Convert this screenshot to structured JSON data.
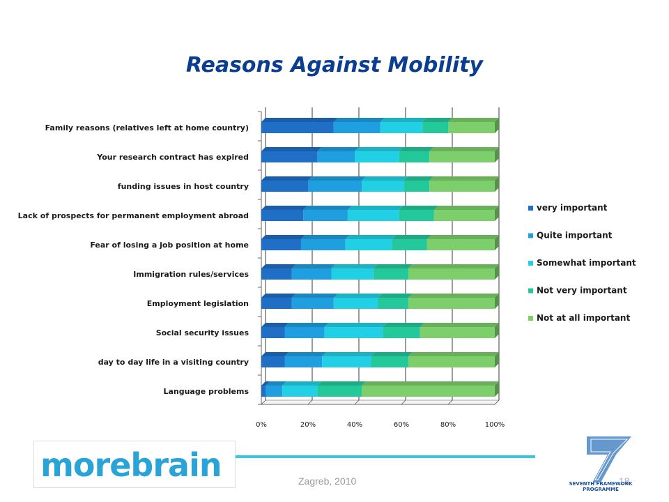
{
  "slide": {
    "title": "Reasons Against Mobility",
    "footer": "Zagreb, 2010",
    "page_number": "18",
    "logo_text": "morebrain",
    "fp7_logo_text": [
      "SEVENTH FRAMEWORK",
      "PROGRAMME"
    ]
  },
  "chart_data": {
    "type": "bar",
    "orientation": "horizontal",
    "stacked": "percent",
    "categories": [
      "Family reasons (relatives left at home country)",
      "Your research contract has expired",
      "funding issues in host country",
      "Lack of prospects for permanent employment abroad",
      "Fear of losing a job position at home",
      "Immigration rules/services",
      "Employment legislation",
      "Social security issues",
      "day to day life in a visiting country",
      "Language problems"
    ],
    "series": [
      {
        "name": "very important",
        "color": "#1f6fc7",
        "values": [
          31,
          24,
          20,
          18,
          17,
          13,
          13,
          10,
          10,
          2
        ]
      },
      {
        "name": "Quite important",
        "color": "#1f9fe0",
        "values": [
          20,
          16,
          23,
          19,
          19,
          17,
          18,
          17,
          16,
          7
        ]
      },
      {
        "name": "Somewhat important",
        "color": "#22d0e6",
        "values": [
          18,
          19,
          18,
          22,
          20,
          18,
          19,
          25,
          21,
          15
        ]
      },
      {
        "name": "Not very important",
        "color": "#23c99a",
        "values": [
          11,
          13,
          11,
          15,
          15,
          15,
          13,
          16,
          16,
          19
        ]
      },
      {
        "name": "Not at all important",
        "color": "#7ccf6b",
        "values": [
          20,
          28,
          28,
          26,
          29,
          37,
          37,
          32,
          37,
          57
        ]
      }
    ],
    "x_ticks": [
      "0%",
      "20%",
      "40%",
      "60%",
      "80%",
      "100%"
    ],
    "xlim": [
      0,
      100
    ],
    "legend_position": "right",
    "grid": true
  }
}
